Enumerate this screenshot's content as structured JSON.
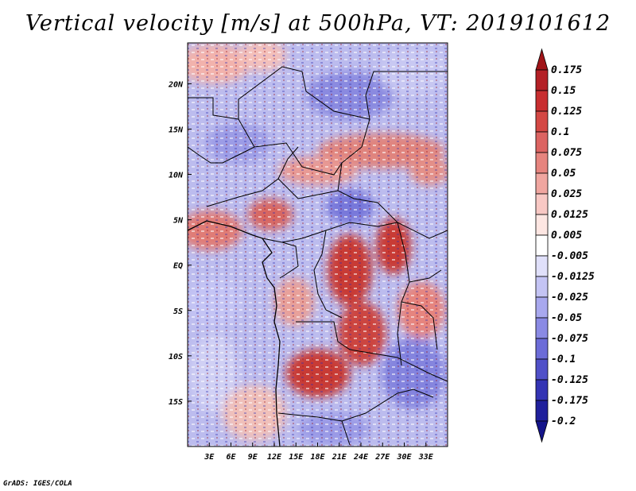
{
  "title": "Vertical velocity [m/s] at 500hPa, VT: 2019101612",
  "credit": "GrADS: IGES/COLA",
  "map": {
    "lon_range": [
      0,
      36
    ],
    "lat_range": [
      -20,
      24.5
    ],
    "lon_ticks": [
      "3E",
      "6E",
      "9E",
      "12E",
      "15E",
      "18E",
      "21E",
      "24E",
      "27E",
      "30E",
      "33E"
    ],
    "lat_ticks": [
      "20N",
      "15N",
      "10N",
      "5N",
      "EQ",
      "5S",
      "10S",
      "15S"
    ]
  },
  "colorbar": {
    "labels": [
      "0.175",
      "0.15",
      "0.125",
      "0.1",
      "0.075",
      "0.05",
      "0.025",
      "0.0125",
      "0.005",
      "-0.005",
      "-0.0125",
      "-0.025",
      "-0.05",
      "-0.075",
      "-0.1",
      "-0.125",
      "-0.175",
      "-0.2"
    ],
    "colors": [
      "#a01418",
      "#b42026",
      "#c82e30",
      "#d44844",
      "#dc6462",
      "#e6847e",
      "#f0a6a0",
      "#f8c8c4",
      "#fde6e2",
      "#ffffff",
      "#e0e0fa",
      "#c4c4f4",
      "#a8a8ee",
      "#8a8ae4",
      "#6c6cd8",
      "#5050c8",
      "#3434b4",
      "#20209c",
      "#14148a"
    ]
  }
}
